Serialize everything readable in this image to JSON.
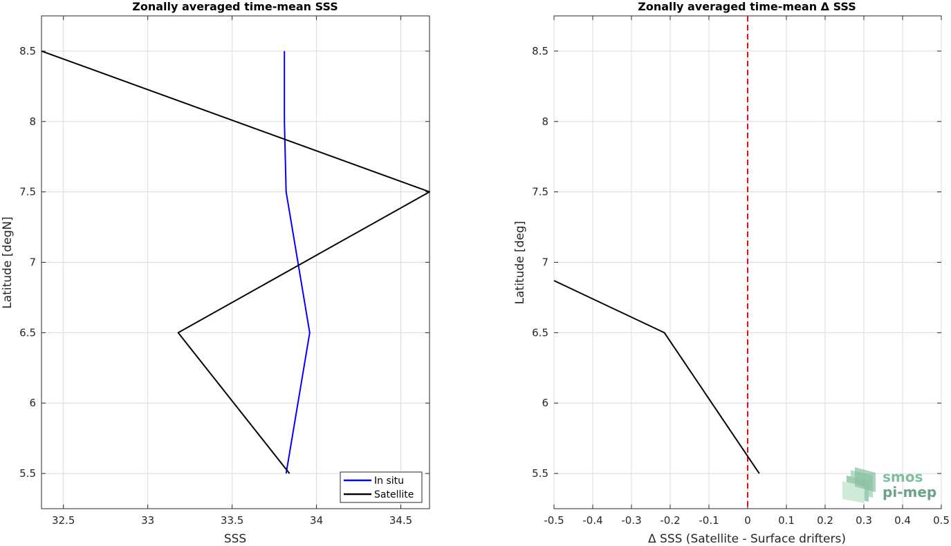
{
  "chart_data": [
    {
      "type": "line",
      "title": "Zonally averaged time-mean SSS",
      "xlabel": "SSS",
      "ylabel": "Latitude [degN]",
      "xlim": [
        32.37,
        34.67
      ],
      "ylim": [
        5.25,
        8.75
      ],
      "xticks": [
        32.5,
        33,
        33.5,
        34,
        34.5
      ],
      "xtick_labels": [
        "32.5",
        "33",
        "33.5",
        "34",
        "34.5"
      ],
      "yticks": [
        5.5,
        6,
        6.5,
        7,
        7.5,
        8,
        8.5
      ],
      "ytick_labels": [
        "5.5",
        "6",
        "6.5",
        "7",
        "7.5",
        "8",
        "8.5"
      ],
      "grid": true,
      "legend": "bottom-right",
      "series": [
        {
          "name": "In situ",
          "color": "#0000ff",
          "points": [
            [
              33.82,
              5.5
            ],
            [
              33.96,
              6.5
            ],
            [
              33.82,
              7.5
            ],
            [
              33.81,
              8.0
            ],
            [
              33.81,
              8.5
            ]
          ]
        },
        {
          "name": "Satellite",
          "color": "#000000",
          "points": [
            [
              33.84,
              5.5
            ],
            [
              33.18,
              6.5
            ],
            [
              34.67,
              7.5
            ],
            [
              32.37,
              8.5
            ]
          ]
        }
      ]
    },
    {
      "type": "line",
      "title": "Zonally averaged time-mean Δ SSS",
      "xlabel": "Δ SSS (Satellite - Surface drifters)",
      "ylabel": "Latitude [deg]",
      "xlim": [
        -0.5,
        0.5
      ],
      "ylim": [
        5.25,
        8.75
      ],
      "xticks": [
        -0.5,
        -0.4,
        -0.3,
        -0.2,
        -0.1,
        0,
        0.1,
        0.2,
        0.3,
        0.4,
        0.5
      ],
      "xtick_labels": [
        "-0.5",
        "-0.4",
        "-0.3",
        "-0.2",
        "-0.1",
        "0",
        "0.1",
        "0.2",
        "0.3",
        "0.4",
        "0.5"
      ],
      "yticks": [
        5.5,
        6,
        6.5,
        7,
        7.5,
        8,
        8.5
      ],
      "ytick_labels": [
        "5.5",
        "6",
        "6.5",
        "7",
        "7.5",
        "8",
        "8.5"
      ],
      "grid": true,
      "reference_line": {
        "x": 0,
        "color": "#ff0000",
        "style": "dashed"
      },
      "series": [
        {
          "color": "#000000",
          "points": [
            [
              0.03,
              5.5
            ],
            [
              -0.215,
              6.5
            ],
            [
              -0.5,
              6.87
            ]
          ]
        }
      ]
    }
  ],
  "watermark": {
    "line1": "smos",
    "line2": "pi-mep",
    "color1": "#7fbf9a",
    "color2": "#6aa38a"
  }
}
